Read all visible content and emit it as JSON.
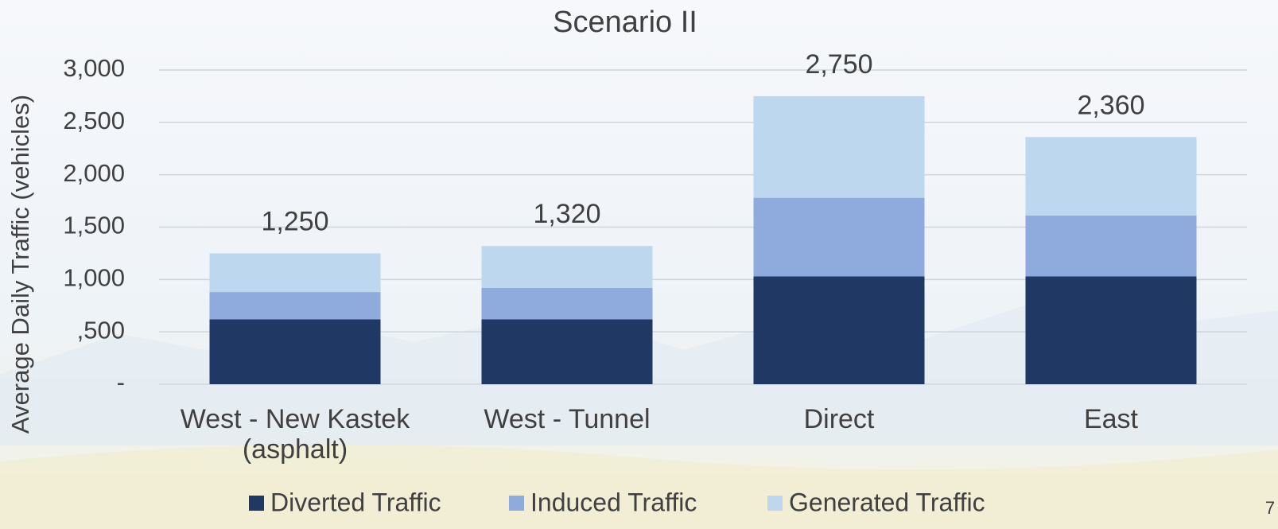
{
  "chart_data": {
    "type": "stacked_bar",
    "title": "Scenario II",
    "y_axis_label": "Average Daily Traffic (vehicles)",
    "categories": [
      "West - New Kastek (asphalt)",
      "West - Tunnel",
      "Direct",
      "East"
    ],
    "series": [
      {
        "name": "Diverted Traffic",
        "color": "#203864",
        "values": [
          620,
          620,
          1030,
          1030
        ]
      },
      {
        "name": "Induced Traffic",
        "color": "#8faadc",
        "values": [
          260,
          300,
          750,
          580
        ]
      },
      {
        "name": "Generated Traffic",
        "color": "#bdd7ee",
        "values": [
          370,
          400,
          970,
          750
        ]
      }
    ],
    "totals": [
      1250,
      1320,
      2750,
      2360
    ],
    "total_labels": [
      "1,250",
      "1,320",
      "2,750",
      "2,360"
    ],
    "ylim": [
      0,
      3000
    ],
    "yticks": [
      {
        "value": 0,
        "label": "-"
      },
      {
        "value": 500,
        "label": ",500"
      },
      {
        "value": 1000,
        "label": "1,000"
      },
      {
        "value": 1500,
        "label": "1,500"
      },
      {
        "value": 2000,
        "label": "2,000"
      },
      {
        "value": 2500,
        "label": "2,500"
      },
      {
        "value": 3000,
        "label": "3,000"
      }
    ],
    "grid": true,
    "legend": "bottom",
    "page_number": "7"
  }
}
